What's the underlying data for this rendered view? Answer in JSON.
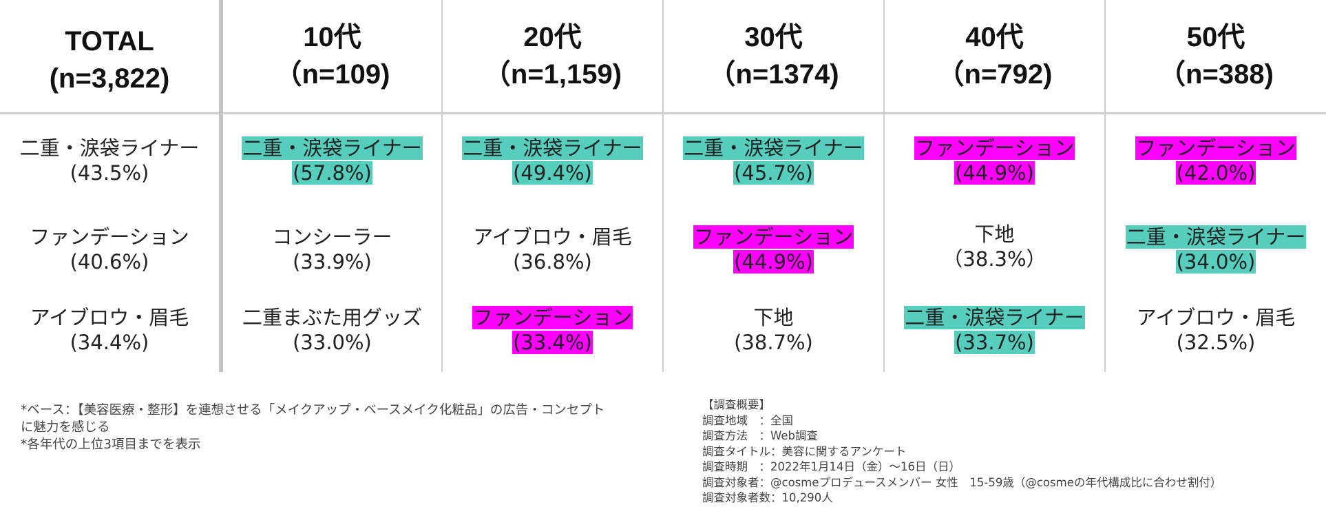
{
  "colors": {
    "teal_highlight": "#56cdbd",
    "magenta_highlight": "#ff00ff",
    "grid_line": "#cfcfcf"
  },
  "columns": [
    {
      "title": "TOTAL",
      "n": "(n=3,822)",
      "items": [
        {
          "name": "二重・涙袋ライナー",
          "pct": "(43.5%)",
          "hl": ""
        },
        {
          "name": "ファンデーション",
          "pct": "(40.6%)",
          "hl": ""
        },
        {
          "name": "アイブロウ・眉毛",
          "pct": "(34.4%)",
          "hl": ""
        }
      ]
    },
    {
      "title": "10代",
      "n": "（n=109)",
      "items": [
        {
          "name": "二重・涙袋ライナー",
          "pct": "(57.8%)",
          "hl": "teal"
        },
        {
          "name": "コンシーラー",
          "pct": "(33.9%)",
          "hl": ""
        },
        {
          "name": "二重まぶた用グッズ",
          "pct": "(33.0%)",
          "hl": ""
        }
      ]
    },
    {
      "title": "20代",
      "n": "（n=1,159)",
      "items": [
        {
          "name": "二重・涙袋ライナー",
          "pct": "(49.4%)",
          "hl": "teal"
        },
        {
          "name": "アイブロウ・眉毛",
          "pct": "(36.8%)",
          "hl": ""
        },
        {
          "name": "ファンデーション",
          "pct": "(33.4%)",
          "hl": "magenta"
        }
      ]
    },
    {
      "title": "30代",
      "n": "（n=1374)",
      "items": [
        {
          "name": "二重・涙袋ライナー",
          "pct": "(45.7%)",
          "hl": "teal"
        },
        {
          "name": "ファンデーション",
          "pct": "(44.9%)",
          "hl": "magenta"
        },
        {
          "name": "下地",
          "pct": "(38.7%)",
          "hl": ""
        }
      ]
    },
    {
      "title": "40代",
      "n": "（n=792)",
      "items": [
        {
          "name": "ファンデーション",
          "pct": "(44.9%)",
          "hl": "magenta"
        },
        {
          "name": "下地",
          "pct": "（38.3%）",
          "hl": ""
        },
        {
          "name": "二重・涙袋ライナー",
          "pct": "(33.7%)",
          "hl": "teal"
        }
      ]
    },
    {
      "title": "50代",
      "n": "（n=388)",
      "items": [
        {
          "name": "ファンデーション",
          "pct": "(42.0%)",
          "hl": "magenta"
        },
        {
          "name": "二重・涙袋ライナー",
          "pct": "(34.0%)",
          "hl": "teal"
        },
        {
          "name": "アイブロウ・眉毛",
          "pct": "(32.5%)",
          "hl": ""
        }
      ]
    }
  ],
  "notes": {
    "base_line1": "*ベース：【美容医療・整形】を連想させる「メイクアップ・ベースメイク化粧品」の広告・コンセプト",
    "base_line2": "に魅力を感じる",
    "top3": "*各年代の上位3項目までを表示"
  },
  "survey": {
    "heading": "【調査概要】",
    "lines": [
      "調査地域　：全国",
      "調査方法　：Web調査",
      "調査タイトル：美容に関するアンケート",
      "調査時期　：2022年1月14日（金）～16日（日）",
      "調査対象者：@cosmeプロデュースメンバー 女性　15-59歳（@cosmeの年代構成比に合わせ割付）",
      "調査対象者数：10,290人"
    ]
  }
}
